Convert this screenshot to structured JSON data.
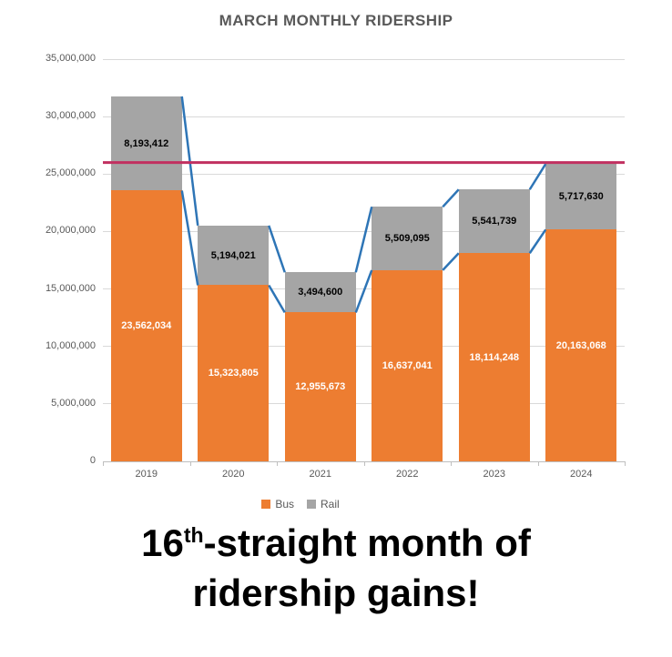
{
  "chart_data": {
    "type": "bar",
    "stacked": true,
    "title": "MARCH MONTHLY RIDERSHIP",
    "categories": [
      "2019",
      "2020",
      "2021",
      "2022",
      "2023",
      "2024"
    ],
    "series": [
      {
        "name": "Bus",
        "color": "#ED7D31",
        "label_color": "#FFFFFF",
        "values": [
          23562034,
          15323805,
          12955673,
          16637041,
          18114248,
          20163068
        ],
        "labels": [
          "23,562,034",
          "15,323,805",
          "12,955,673",
          "16,637,041",
          "18,114,248",
          "20,163,068"
        ]
      },
      {
        "name": "Rail",
        "color": "#A5A5A5",
        "label_color": "#000000",
        "values": [
          8193412,
          5194021,
          3494600,
          5509095,
          5541739,
          5717630
        ],
        "labels": [
          "8,193,412",
          "5,194,021",
          "3,494,600",
          "5,509,095",
          "5,541,739",
          "5,717,630"
        ]
      }
    ],
    "ylim": [
      0,
      35000000
    ],
    "y_tick_step": 5000000,
    "y_tick_labels": [
      "0",
      "5,000,000",
      "10,000,000",
      "15,000,000",
      "20,000,000",
      "25,000,000",
      "30,000,000",
      "35,000,000"
    ],
    "grid": "horizontal",
    "legend_position": "bottom",
    "reference_line": {
      "value": 26000000,
      "color": "#C13060"
    },
    "series_lines": {
      "color": "#2E75B6"
    },
    "xlabel": "",
    "ylabel": ""
  },
  "legend": {
    "items": [
      {
        "label": "Bus",
        "color": "#ED7D31"
      },
      {
        "label": "Rail",
        "color": "#A5A5A5"
      }
    ]
  },
  "headline": {
    "number": "16",
    "ordinal": "th",
    "line1_rest": "-straight month of",
    "line2": "ridership gains!"
  }
}
